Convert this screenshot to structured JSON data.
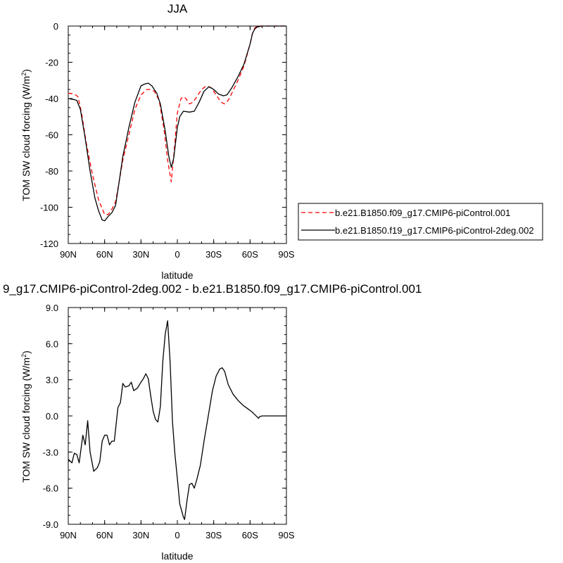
{
  "chart_data": [
    {
      "type": "line",
      "title": "JJA",
      "xlabel": "latitude",
      "ylabel": "TOM SW cloud forcing (W/m",
      "ylabel_sup": "2",
      "ylabel_close": ")",
      "x_ticks": [
        {
          "value": -90,
          "label": "90N"
        },
        {
          "value": -60,
          "label": "60N"
        },
        {
          "value": -30,
          "label": "30N"
        },
        {
          "value": 0,
          "label": "0"
        },
        {
          "value": 30,
          "label": "30S"
        },
        {
          "value": 60,
          "label": "60S"
        },
        {
          "value": 90,
          "label": "90S"
        }
      ],
      "xlim": [
        -90,
        90
      ],
      "ylim": [
        -120,
        0
      ],
      "y_ticks": [
        {
          "value": 0,
          "label": "0"
        },
        {
          "value": -20,
          "label": "-20"
        },
        {
          "value": -40,
          "label": "-40"
        },
        {
          "value": -60,
          "label": "-60"
        },
        {
          "value": -80,
          "label": "-80"
        },
        {
          "value": -100,
          "label": "-100"
        },
        {
          "value": -120,
          "label": "-120"
        }
      ],
      "legend": {
        "placement": "right",
        "entries": [
          "b.e21.B1850.f09_g17.CMIP6-piControl.001",
          "b.e21.B1850.f19_g17.CMIP6-piControl-2deg.002"
        ]
      },
      "series": [
        {
          "name": "b.e21.B1850.f09_g17.CMIP6-piControl.001",
          "color": "#ff0000",
          "dash": "dashed",
          "points": [
            [
              -90,
              -37
            ],
            [
              -85,
              -37.5
            ],
            [
              -82,
              -39
            ],
            [
              -79,
              -48
            ],
            [
              -75,
              -65
            ],
            [
              -70,
              -82
            ],
            [
              -65,
              -96
            ],
            [
              -60,
              -104
            ],
            [
              -57,
              -104
            ],
            [
              -54,
              -101
            ],
            [
              -51,
              -97
            ],
            [
              -48,
              -86
            ],
            [
              -45,
              -74
            ],
            [
              -40,
              -60
            ],
            [
              -35,
              -46
            ],
            [
              -30,
              -38
            ],
            [
              -25,
              -35
            ],
            [
              -22,
              -35
            ],
            [
              -19,
              -36
            ],
            [
              -15,
              -41
            ],
            [
              -11,
              -57
            ],
            [
              -8,
              -74
            ],
            [
              -5,
              -86
            ],
            [
              -3,
              -72
            ],
            [
              0,
              -48
            ],
            [
              3,
              -40
            ],
            [
              5,
              -39
            ],
            [
              7,
              -40
            ],
            [
              10,
              -43
            ],
            [
              13,
              -42
            ],
            [
              16,
              -39
            ],
            [
              20,
              -35
            ],
            [
              24,
              -33
            ],
            [
              28,
              -34
            ],
            [
              32,
              -38
            ],
            [
              36,
              -42
            ],
            [
              39,
              -43
            ],
            [
              42,
              -41
            ],
            [
              45,
              -37
            ],
            [
              50,
              -30
            ],
            [
              55,
              -22
            ],
            [
              60,
              -10
            ],
            [
              62,
              -4
            ],
            [
              64,
              -1
            ],
            [
              66,
              0
            ],
            [
              70,
              0
            ],
            [
              80,
              0
            ],
            [
              90,
              0
            ]
          ]
        },
        {
          "name": "b.e21.B1850.f19_g17.CMIP6-piControl-2deg.002",
          "color": "#000000",
          "dash": "solid",
          "points": [
            [
              -90,
              -40
            ],
            [
              -86,
              -40.5
            ],
            [
              -83,
              -41
            ],
            [
              -80,
              -46
            ],
            [
              -76,
              -62
            ],
            [
              -72,
              -80
            ],
            [
              -68,
              -95
            ],
            [
              -65,
              -102
            ],
            [
              -62,
              -107
            ],
            [
              -60,
              -107.5
            ],
            [
              -57,
              -105
            ],
            [
              -54,
              -103
            ],
            [
              -51,
              -99
            ],
            [
              -48,
              -86
            ],
            [
              -45,
              -72
            ],
            [
              -40,
              -56
            ],
            [
              -35,
              -42
            ],
            [
              -30,
              -33
            ],
            [
              -27,
              -32
            ],
            [
              -24,
              -31.5
            ],
            [
              -21,
              -33
            ],
            [
              -17,
              -37
            ],
            [
              -14,
              -43
            ],
            [
              -10,
              -58
            ],
            [
              -7,
              -72
            ],
            [
              -5,
              -78
            ],
            [
              -3,
              -73
            ],
            [
              0,
              -56
            ],
            [
              2,
              -50
            ],
            [
              5,
              -47
            ],
            [
              10,
              -47.5
            ],
            [
              14,
              -47
            ],
            [
              18,
              -42
            ],
            [
              22,
              -36
            ],
            [
              26,
              -33.5
            ],
            [
              30,
              -35
            ],
            [
              34,
              -37.5
            ],
            [
              38,
              -38.5
            ],
            [
              41,
              -38
            ],
            [
              45,
              -34
            ],
            [
              50,
              -28
            ],
            [
              55,
              -21
            ],
            [
              60,
              -10
            ],
            [
              62,
              -4
            ],
            [
              64,
              -1.5
            ],
            [
              66,
              -0.5
            ],
            [
              70,
              0
            ],
            [
              80,
              0
            ],
            [
              90,
              0
            ]
          ]
        }
      ]
    },
    {
      "type": "line",
      "title": "9_g17.CMIP6-piControl-2deg.002 - b.e21.B1850.f09_g17.CMIP6-piControl.001",
      "xlabel": "latitude",
      "ylabel": "TOM SW cloud forcing (W/m",
      "ylabel_sup": "2",
      "ylabel_close": ")",
      "x_ticks": [
        {
          "value": -90,
          "label": "90N"
        },
        {
          "value": -60,
          "label": "60N"
        },
        {
          "value": -30,
          "label": "30N"
        },
        {
          "value": 0,
          "label": "0"
        },
        {
          "value": 30,
          "label": "30S"
        },
        {
          "value": 60,
          "label": "60S"
        },
        {
          "value": 90,
          "label": "90S"
        }
      ],
      "xlim": [
        -90,
        90
      ],
      "ylim": [
        -9,
        9
      ],
      "y_ticks": [
        {
          "value": 9,
          "label": "9.0"
        },
        {
          "value": 6,
          "label": "6.0"
        },
        {
          "value": 3,
          "label": "3.0"
        },
        {
          "value": 0,
          "label": "0.0"
        },
        {
          "value": -3,
          "label": "-3.0"
        },
        {
          "value": -6,
          "label": "-6.0"
        },
        {
          "value": -9,
          "label": "-9.0"
        }
      ],
      "series": [
        {
          "color": "#000000",
          "dash": "solid",
          "points": [
            [
              -90,
              -3.6
            ],
            [
              -87,
              -3.9
            ],
            [
              -85,
              -3.1
            ],
            [
              -83,
              -3.2
            ],
            [
              -81,
              -3.9
            ],
            [
              -78,
              -1.6
            ],
            [
              -76,
              -2.4
            ],
            [
              -74,
              -0.4
            ],
            [
              -72,
              -3.0
            ],
            [
              -69,
              -4.6
            ],
            [
              -66,
              -4.3
            ],
            [
              -64,
              -3.8
            ],
            [
              -62,
              -2.1
            ],
            [
              -60,
              -1.6
            ],
            [
              -58,
              -1.6
            ],
            [
              -56,
              -2.4
            ],
            [
              -54,
              -2.1
            ],
            [
              -52,
              -2.1
            ],
            [
              -49,
              0.7
            ],
            [
              -47,
              1.1
            ],
            [
              -45,
              2.7
            ],
            [
              -43,
              2.4
            ],
            [
              -40,
              2.5
            ],
            [
              -38,
              2.8
            ],
            [
              -36,
              2.1
            ],
            [
              -33,
              2.3
            ],
            [
              -30,
              2.8
            ],
            [
              -28,
              3.1
            ],
            [
              -26,
              3.5
            ],
            [
              -24,
              3.1
            ],
            [
              -22,
              1.7
            ],
            [
              -20,
              0.4
            ],
            [
              -18,
              -0.3
            ],
            [
              -16,
              -0.5
            ],
            [
              -14,
              0.8
            ],
            [
              -12,
              4.5
            ],
            [
              -10,
              6.8
            ],
            [
              -8,
              7.9
            ],
            [
              -6,
              4.5
            ],
            [
              -4,
              -0.5
            ],
            [
              -2,
              -3.2
            ],
            [
              0,
              -5.2
            ],
            [
              2,
              -7.3
            ],
            [
              5,
              -8.4
            ],
            [
              6,
              -8.6
            ],
            [
              8,
              -7.0
            ],
            [
              10,
              -5.7
            ],
            [
              12,
              -5.6
            ],
            [
              14,
              -6.0
            ],
            [
              16,
              -5.3
            ],
            [
              19,
              -4.1
            ],
            [
              22,
              -2.1
            ],
            [
              25,
              -0.3
            ],
            [
              29,
              2.1
            ],
            [
              32,
              3.3
            ],
            [
              35,
              3.9
            ],
            [
              37,
              4.0
            ],
            [
              39,
              3.7
            ],
            [
              42,
              2.6
            ],
            [
              46,
              1.8
            ],
            [
              50,
              1.3
            ],
            [
              54,
              0.9
            ],
            [
              58,
              0.6
            ],
            [
              62,
              0.3
            ],
            [
              64,
              0.1
            ],
            [
              66,
              -0.1
            ],
            [
              67,
              -0.2
            ],
            [
              68,
              -0.05
            ],
            [
              70,
              0
            ],
            [
              75,
              0
            ],
            [
              80,
              0
            ],
            [
              85,
              0
            ],
            [
              90,
              0
            ]
          ]
        }
      ]
    }
  ]
}
